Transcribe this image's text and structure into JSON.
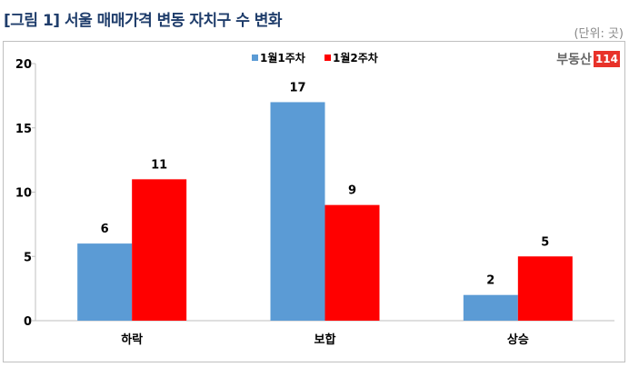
{
  "title": "[그림 1] 서울 매매가격 변동 자치구 수 변화",
  "unit": "(단위: 곳)",
  "logo": {
    "text": "부동산",
    "number": "114"
  },
  "chart_data": {
    "type": "bar",
    "categories": [
      "하락",
      "보합",
      "상승"
    ],
    "series": [
      {
        "name": "1월1주차",
        "color": "#5b9bd5",
        "values": [
          6,
          17,
          2
        ]
      },
      {
        "name": "1월2주차",
        "color": "#ff0000",
        "values": [
          11,
          9,
          5
        ]
      }
    ],
    "ylim": [
      0,
      20
    ],
    "yticks": [
      0,
      5,
      10,
      15,
      20
    ],
    "legend": "top-center",
    "grid": false
  }
}
